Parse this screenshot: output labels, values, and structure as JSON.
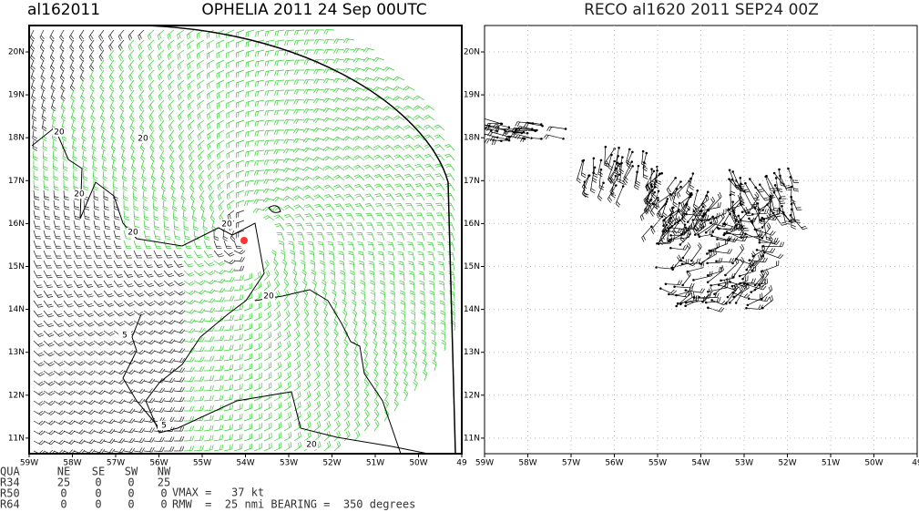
{
  "left_panel": {
    "storm_id": "al162011",
    "title": "OPHELIA 2011 24 Sep 00UTC",
    "x_ticks": [
      "59W",
      "58W",
      "57W",
      "56W",
      "55W",
      "54W",
      "53W",
      "52W",
      "51W",
      "50W",
      "49"
    ],
    "y_ticks": [
      "11N",
      "12N",
      "13N",
      "14N",
      "15N",
      "16N",
      "17N",
      "18N",
      "19N",
      "20N"
    ],
    "contour_labels": [
      "20",
      "20",
      "20",
      "20",
      "20",
      "20",
      "5",
      "5",
      "20"
    ]
  },
  "right_panel": {
    "title": "RECO al1620 2011 SEP24 00Z",
    "x_ticks": [
      "59W",
      "58W",
      "57W",
      "56W",
      "55W",
      "54W",
      "53W",
      "52W",
      "51W",
      "50W",
      "49"
    ],
    "y_ticks": [
      "11N",
      "12N",
      "13N",
      "14N",
      "15N",
      "16N",
      "17N",
      "18N",
      "19N",
      "20N"
    ]
  },
  "table": {
    "header": [
      "QUA",
      "NE",
      "SE",
      "SW",
      "NW"
    ],
    "rows": [
      [
        "R34",
        25,
        0,
        0,
        25
      ],
      [
        "R50",
        0,
        0,
        0,
        0
      ],
      [
        "R64",
        0,
        0,
        0,
        0
      ]
    ]
  },
  "vmax": "VMAX =   37 kt",
  "rmw": "RMW  =  25 nmi BEARING =  350 degrees"
}
